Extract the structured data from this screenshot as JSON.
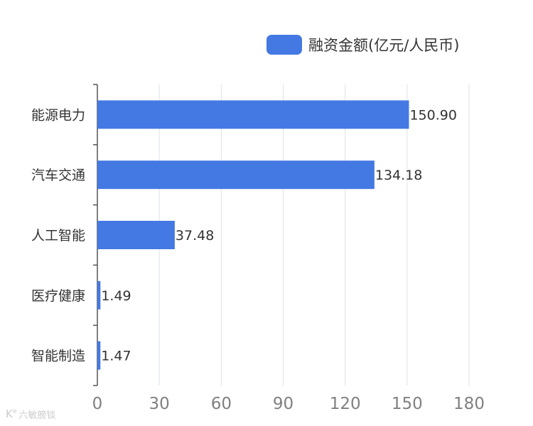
{
  "chart_data": {
    "type": "bar",
    "orientation": "horizontal",
    "categories": [
      "能源电力",
      "汽车交通",
      "人工智能",
      "医疗健康",
      "智能制造"
    ],
    "series": [
      {
        "name": "融资金额(亿元/人民币)",
        "values": [
          150.9,
          134.18,
          37.48,
          1.49,
          1.47
        ]
      }
    ],
    "value_labels": [
      "150.90",
      "134.18",
      "37.48",
      "1.49",
      "1.47"
    ],
    "xlim": [
      0,
      180
    ],
    "xticks": [
      0,
      30,
      60,
      90,
      120,
      150,
      180
    ],
    "grid": "vertical",
    "legend_position": "top-right",
    "bar_color": "#4479e3"
  },
  "watermark": {
    "text": "六敏膀锬"
  }
}
